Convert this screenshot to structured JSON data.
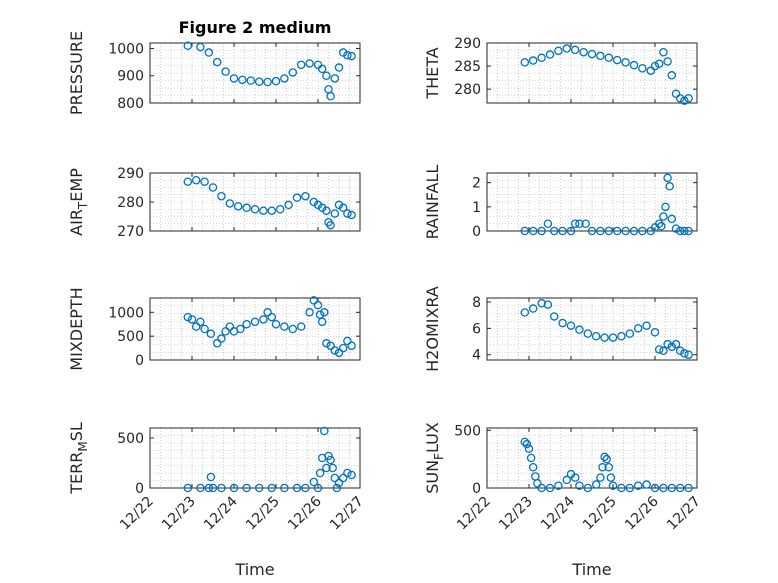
{
  "figure": {
    "title": "Figure 2 medium"
  },
  "colors": {
    "marker": "#0072BD",
    "axis": "#262626",
    "grid": "#b0b0b0"
  },
  "x_axis": {
    "label": "Time",
    "ticks": [
      1,
      2,
      3,
      4,
      5,
      6
    ],
    "tick_labels": [
      "12/22",
      "12/23",
      "12/24",
      "12/25",
      "12/26",
      "12/27"
    ]
  },
  "chart_data": [
    {
      "type": "scatter",
      "column": "left",
      "row": 0,
      "title": "Figure 2 medium",
      "ylabel": "PRESSURE",
      "ylabel_main": "PRESSURE",
      "ylabel_sub": "",
      "ylabel_tail": "",
      "ylim": [
        800,
        1020
      ],
      "yticks": [
        800,
        900,
        1000
      ],
      "ytick_labels": [
        "800",
        "900",
        "1000"
      ],
      "xlim": [
        1,
        6
      ],
      "grid": true,
      "marker": "o",
      "x": [
        1.9,
        2.2,
        2.4,
        2.6,
        2.8,
        3.0,
        3.2,
        3.4,
        3.6,
        3.8,
        4.0,
        4.2,
        4.4,
        4.6,
        4.8,
        5.0,
        5.1,
        5.2,
        5.25,
        5.3,
        5.4,
        5.5,
        5.6,
        5.7,
        5.8
      ],
      "y": [
        1010,
        1005,
        985,
        950,
        915,
        890,
        885,
        882,
        878,
        877,
        880,
        890,
        912,
        940,
        945,
        940,
        925,
        900,
        850,
        825,
        890,
        930,
        985,
        975,
        972
      ]
    },
    {
      "type": "scatter",
      "column": "right",
      "row": 0,
      "ylabel": "THETA",
      "ylabel_main": "THETA",
      "ylabel_sub": "",
      "ylabel_tail": "",
      "ylim": [
        277,
        290
      ],
      "yticks": [
        280,
        285,
        290
      ],
      "ytick_labels": [
        "280",
        "285",
        "290"
      ],
      "xlim": [
        1,
        6
      ],
      "grid": true,
      "marker": "o",
      "x": [
        1.9,
        2.1,
        2.3,
        2.5,
        2.7,
        2.9,
        3.1,
        3.3,
        3.5,
        3.7,
        3.9,
        4.1,
        4.3,
        4.5,
        4.7,
        4.9,
        5.0,
        5.1,
        5.2,
        5.3,
        5.4,
        5.5,
        5.6,
        5.7,
        5.8
      ],
      "y": [
        285.8,
        286.2,
        286.8,
        287.5,
        288.3,
        288.8,
        288.5,
        288.0,
        287.6,
        287.2,
        286.8,
        286.3,
        285.8,
        285.2,
        284.5,
        284.0,
        285.0,
        285.5,
        288.0,
        286.0,
        283.0,
        279.0,
        278.0,
        277.5,
        278.0
      ]
    },
    {
      "type": "scatter",
      "column": "left",
      "row": 1,
      "ylabel": "AIR_TEMP",
      "ylabel_main": "AIR",
      "ylabel_sub": "T",
      "ylabel_tail": "EMP",
      "ylim": [
        270,
        290
      ],
      "yticks": [
        270,
        280,
        290
      ],
      "ytick_labels": [
        "270",
        "280",
        "290"
      ],
      "xlim": [
        1,
        6
      ],
      "grid": true,
      "marker": "o",
      "x": [
        1.9,
        2.1,
        2.3,
        2.5,
        2.7,
        2.9,
        3.1,
        3.3,
        3.5,
        3.7,
        3.9,
        4.1,
        4.3,
        4.5,
        4.7,
        4.9,
        5.0,
        5.1,
        5.2,
        5.25,
        5.3,
        5.4,
        5.5,
        5.6,
        5.7,
        5.8
      ],
      "y": [
        287,
        287.5,
        287,
        285,
        282,
        279.5,
        278.5,
        278,
        277.5,
        277,
        277,
        277.5,
        279,
        281.5,
        282,
        280,
        279,
        278,
        277,
        273,
        272,
        276,
        279,
        278,
        276,
        275.5
      ]
    },
    {
      "type": "scatter",
      "column": "right",
      "row": 1,
      "ylabel": "RAINFALL",
      "ylabel_main": "RAINFALL",
      "ylabel_sub": "",
      "ylabel_tail": "",
      "ylim": [
        0,
        2.4
      ],
      "yticks": [
        0,
        1,
        2
      ],
      "ytick_labels": [
        "0",
        "1",
        "2"
      ],
      "xlim": [
        1,
        6
      ],
      "grid": true,
      "marker": "o",
      "x": [
        1.9,
        2.1,
        2.3,
        2.45,
        2.6,
        2.8,
        3.0,
        3.1,
        3.2,
        3.35,
        3.5,
        3.7,
        3.9,
        4.1,
        4.3,
        4.5,
        4.7,
        4.9,
        5.0,
        5.1,
        5.15,
        5.2,
        5.25,
        5.3,
        5.35,
        5.4,
        5.5,
        5.6,
        5.7,
        5.8
      ],
      "y": [
        0,
        0,
        0,
        0.3,
        0,
        0,
        0,
        0.3,
        0.3,
        0.3,
        0,
        0,
        0,
        0,
        0,
        0,
        0,
        0,
        0.15,
        0.3,
        0.2,
        0.6,
        1.0,
        2.2,
        1.85,
        0.5,
        0.1,
        0,
        0,
        0
      ]
    },
    {
      "type": "scatter",
      "column": "left",
      "row": 2,
      "ylabel": "MIXDEPTH",
      "ylabel_main": "MIXDEPTH",
      "ylabel_sub": "",
      "ylabel_tail": "",
      "ylim": [
        0,
        1300
      ],
      "yticks": [
        0,
        500,
        1000
      ],
      "ytick_labels": [
        "0",
        "500",
        "1000"
      ],
      "xlim": [
        1,
        6
      ],
      "grid": true,
      "marker": "o",
      "x": [
        1.9,
        2.0,
        2.1,
        2.2,
        2.3,
        2.45,
        2.6,
        2.7,
        2.8,
        2.9,
        3.0,
        3.15,
        3.3,
        3.5,
        3.7,
        3.8,
        3.9,
        4.0,
        4.2,
        4.4,
        4.6,
        4.8,
        4.9,
        5.0,
        5.05,
        5.1,
        5.15,
        5.2,
        5.3,
        5.4,
        5.5,
        5.6,
        5.7,
        5.8
      ],
      "y": [
        900,
        850,
        700,
        800,
        650,
        550,
        350,
        450,
        600,
        700,
        600,
        650,
        750,
        800,
        850,
        1000,
        900,
        750,
        700,
        650,
        700,
        1000,
        1250,
        1150,
        950,
        800,
        1000,
        350,
        300,
        200,
        150,
        250,
        400,
        300
      ]
    },
    {
      "type": "scatter",
      "column": "right",
      "row": 2,
      "ylabel": "H2OMIXRA",
      "ylabel_main": "H2OMIXRA",
      "ylabel_sub": "",
      "ylabel_tail": "",
      "ylim": [
        3.6,
        8.3
      ],
      "yticks": [
        4,
        6,
        8
      ],
      "ytick_labels": [
        "4",
        "6",
        "8"
      ],
      "xlim": [
        1,
        6
      ],
      "grid": true,
      "marker": "o",
      "x": [
        1.9,
        2.1,
        2.3,
        2.45,
        2.6,
        2.8,
        3.0,
        3.2,
        3.4,
        3.6,
        3.8,
        4.0,
        4.2,
        4.4,
        4.6,
        4.8,
        5.0,
        5.1,
        5.2,
        5.3,
        5.4,
        5.5,
        5.6,
        5.7,
        5.8
      ],
      "y": [
        7.2,
        7.5,
        7.9,
        7.8,
        6.9,
        6.4,
        6.2,
        5.9,
        5.6,
        5.4,
        5.3,
        5.3,
        5.4,
        5.6,
        6.0,
        6.2,
        5.7,
        4.4,
        4.3,
        4.8,
        4.6,
        4.8,
        4.3,
        4.1,
        4.0
      ]
    },
    {
      "type": "scatter",
      "column": "left",
      "row": 3,
      "ylabel": "TERR_MSL",
      "ylabel_main": "TERR",
      "ylabel_sub": "M",
      "ylabel_tail": "SL",
      "ylim": [
        0,
        600
      ],
      "yticks": [
        0,
        500
      ],
      "ytick_labels": [
        "0",
        "500"
      ],
      "xlim": [
        1,
        6
      ],
      "grid": true,
      "marker": "o",
      "x": [
        1.9,
        2.2,
        2.4,
        2.45,
        2.5,
        2.7,
        3.0,
        3.3,
        3.6,
        3.9,
        4.2,
        4.5,
        4.7,
        4.9,
        5.0,
        5.05,
        5.1,
        5.15,
        5.2,
        5.25,
        5.3,
        5.35,
        5.4,
        5.45,
        5.5,
        5.6,
        5.7,
        5.8
      ],
      "y": [
        0,
        0,
        0,
        110,
        0,
        0,
        0,
        0,
        0,
        0,
        0,
        0,
        0,
        60,
        0,
        150,
        300,
        570,
        200,
        320,
        280,
        200,
        100,
        0,
        50,
        100,
        150,
        130
      ]
    },
    {
      "type": "scatter",
      "column": "right",
      "row": 3,
      "ylabel": "SUN_FLUX",
      "ylabel_main": "SUN",
      "ylabel_sub": "F",
      "ylabel_tail": "LUX",
      "ylim": [
        0,
        520
      ],
      "yticks": [
        0,
        500
      ],
      "ytick_labels": [
        "0",
        "500"
      ],
      "xlim": [
        1,
        6
      ],
      "grid": true,
      "marker": "o",
      "x": [
        1.9,
        1.95,
        2.0,
        2.05,
        2.1,
        2.15,
        2.2,
        2.3,
        2.5,
        2.7,
        2.9,
        3.0,
        3.1,
        3.2,
        3.4,
        3.6,
        3.7,
        3.75,
        3.8,
        3.85,
        3.9,
        3.95,
        4.0,
        4.2,
        4.4,
        4.6,
        4.8,
        5.0,
        5.2,
        5.4,
        5.6,
        5.8
      ],
      "y": [
        400,
        380,
        340,
        260,
        180,
        100,
        40,
        0,
        0,
        20,
        70,
        120,
        90,
        20,
        0,
        30,
        90,
        180,
        270,
        250,
        180,
        90,
        20,
        0,
        0,
        20,
        30,
        0,
        0,
        0,
        0,
        0
      ]
    }
  ]
}
